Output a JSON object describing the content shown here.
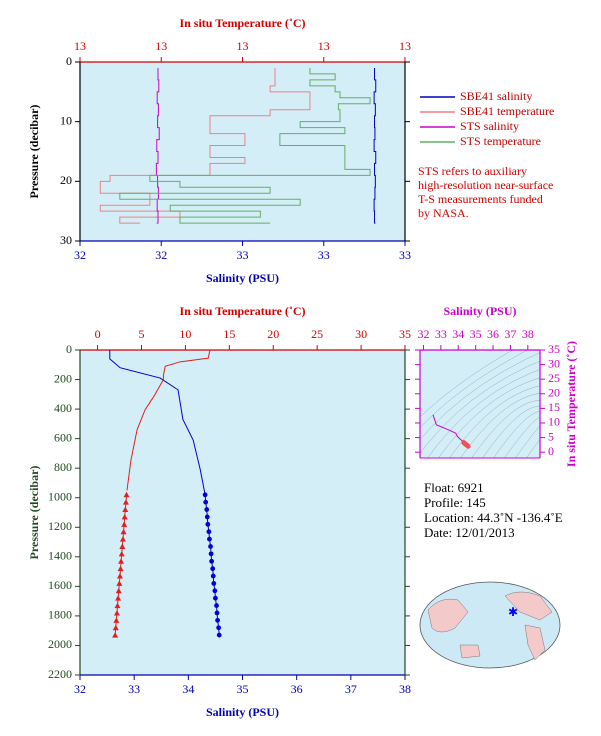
{
  "chart_data": [
    {
      "type": "line",
      "x_label": "Salinity (PSU)",
      "x2_label": "In situ Temperature (˚C)",
      "y_label": "Pressure (decibar)",
      "x_color": "#0000b0",
      "x2_color": "#d00000",
      "y_color": "#000000",
      "xlim": [
        32.2,
        33.0
      ],
      "xticks": [
        {
          "value": 32.2,
          "label": "32"
        },
        {
          "value": 32.4,
          "label": "32"
        },
        {
          "value": 32.6,
          "label": "33"
        },
        {
          "value": 32.8,
          "label": "33"
        },
        {
          "value": 33.0,
          "label": "33"
        }
      ],
      "x2lim": [
        12.8,
        13.2
      ],
      "x2ticks": [
        {
          "value": 12.8,
          "label": "13"
        },
        {
          "value": 12.9,
          "label": "13"
        },
        {
          "value": 13.0,
          "label": "13"
        },
        {
          "value": 13.1,
          "label": "13"
        },
        {
          "value": 13.2,
          "label": "13"
        }
      ],
      "ylim": [
        30,
        0
      ],
      "yticks": [
        0,
        10,
        20,
        30
      ],
      "legend": "right",
      "series": [
        {
          "name": "SBE41 salinity",
          "color": "#0000c0",
          "step": true,
          "x": [
            32.925,
            32.928,
            32.924,
            32.927,
            32.925,
            32.926,
            32.924,
            32.928,
            32.925,
            32.927,
            32.926,
            32.924,
            32.925,
            32.927
          ],
          "values": [
            1,
            3,
            5,
            7,
            9,
            11,
            13,
            15,
            17,
            19,
            21,
            23,
            25,
            27
          ]
        },
        {
          "name": "SBE41 temperature",
          "color": "#f08080",
          "axis": "x2",
          "step": true,
          "x": [
            13.04,
            13.034,
            13.083,
            13.034,
            12.96,
            13.003,
            12.96,
            13.003,
            12.96,
            12.837,
            12.825,
            12.886,
            12.825,
            12.923,
            12.849,
            12.874
          ],
          "values": [
            1,
            4,
            5,
            8,
            9,
            12,
            14,
            16,
            17,
            19,
            20,
            22,
            24,
            25,
            26,
            27
          ]
        },
        {
          "name": "STS salinity",
          "color": "#cc00cc",
          "step": true,
          "x": [
            32.392,
            32.394,
            32.39,
            32.393,
            32.391,
            32.395,
            32.389,
            32.392,
            32.388,
            32.391,
            32.393,
            32.39,
            32.392,
            32.389
          ],
          "values": [
            1,
            3,
            5,
            7,
            9,
            11,
            13,
            15,
            17,
            19,
            21,
            23,
            25,
            27
          ]
        },
        {
          "name": "STS temperature",
          "color": "#60b060",
          "axis": "x2",
          "step": true,
          "x": [
            13.083,
            13.114,
            13.083,
            13.114,
            13.12,
            13.157,
            13.118,
            13.12,
            13.071,
            13.126,
            13.046,
            13.126,
            13.126,
            13.157,
            12.886,
            12.923,
            13.034,
            12.849,
            13.071,
            12.911,
            13.022,
            12.923,
            13.034
          ],
          "values": [
            1,
            2,
            3,
            4,
            5,
            6,
            7,
            8,
            10,
            11,
            12,
            14,
            16,
            18,
            19,
            20,
            21,
            22,
            23,
            24,
            25,
            26,
            27
          ]
        }
      ],
      "note": [
        "STS refers to auxiliary",
        "high-resolution near-surface",
        "T-S measurements funded",
        "by NASA."
      ]
    },
    {
      "type": "line",
      "x_label": "Salinity (PSU)",
      "x2_label": "In situ Temperature (˚C)",
      "y_label": "Pressure (decibar)",
      "x_color": "#0000b0",
      "x2_color": "#d00000",
      "y_color": "#1f4a1f",
      "xlim": [
        32,
        38
      ],
      "xticks": [
        32,
        33,
        34,
        35,
        36,
        37,
        38
      ],
      "x2lim": [
        -2,
        35
      ],
      "x2ticks": [
        0,
        5,
        10,
        15,
        20,
        25,
        30,
        35
      ],
      "ylim": [
        2200,
        0
      ],
      "yticks": [
        0,
        200,
        400,
        600,
        800,
        1000,
        1200,
        1400,
        1600,
        1800,
        2000,
        2200
      ],
      "series": [
        {
          "color": "#0000d0",
          "x": [
            32.55,
            32.55,
            32.74,
            33.48,
            33.81,
            33.9,
            34.09,
            34.22,
            34.31
          ],
          "values": [
            0,
            60,
            120,
            190,
            270,
            470,
            610,
            810,
            980
          ]
        },
        {
          "color": "#0000d0",
          "marker": "circle",
          "x": [
            34.31,
            34.32,
            34.34,
            34.35,
            34.36,
            34.38,
            34.39,
            34.41,
            34.42,
            34.43,
            34.45,
            34.46,
            34.47,
            34.49,
            34.5,
            34.52,
            34.53,
            34.54,
            34.56,
            34.57
          ],
          "values": [
            980,
            1030,
            1080,
            1130,
            1180,
            1230,
            1280,
            1330,
            1380,
            1430,
            1480,
            1530,
            1580,
            1630,
            1680,
            1730,
            1780,
            1830,
            1880,
            1930
          ]
        },
        {
          "color": "#e02020",
          "axis": "x2",
          "x": [
            12.8,
            12.6,
            9.4,
            7.7,
            7.5,
            7.5,
            6.5,
            5.4,
            4.5,
            3.8,
            3.35
          ],
          "values": [
            0,
            55,
            80,
            110,
            170,
            200,
            305,
            406,
            540,
            745,
            950
          ]
        },
        {
          "color": "#e02020",
          "axis": "x2",
          "marker": "triangle",
          "x": [
            3.3,
            3.23,
            3.16,
            3.09,
            3.03,
            2.96,
            2.89,
            2.82,
            2.75,
            2.68,
            2.62,
            2.55,
            2.48,
            2.41,
            2.34,
            2.27,
            2.21,
            2.14,
            2.07,
            2.0
          ],
          "values": [
            980,
            1030,
            1080,
            1130,
            1180,
            1230,
            1280,
            1330,
            1380,
            1430,
            1480,
            1530,
            1580,
            1630,
            1680,
            1730,
            1780,
            1830,
            1880,
            1930
          ]
        }
      ]
    },
    {
      "type": "line",
      "x_label": "Salinity (PSU)",
      "y_label": "In situ Temperature (˚C)",
      "x_color": "#cc00cc",
      "y_color": "#cc00cc",
      "x_side": "top",
      "y_side": "right",
      "xlim": [
        31.8,
        38.7
      ],
      "xticks": [
        32,
        33,
        34,
        35,
        36,
        37,
        38
      ],
      "ylim": [
        -2,
        35
      ],
      "yticks": [
        0,
        5,
        10,
        15,
        20,
        25,
        30,
        35
      ],
      "series": [
        {
          "color": "#cc00cc",
          "x": [
            32.55,
            32.74,
            33.5,
            33.85,
            33.95,
            34.1,
            34.25,
            34.3
          ],
          "values": [
            12.8,
            9.4,
            7.5,
            6.5,
            5.4,
            4.5,
            3.8,
            3.35
          ]
        },
        {
          "color": "#f05050",
          "marker": "circle",
          "x": [
            34.31,
            34.34,
            34.36,
            34.39,
            34.42,
            34.45,
            34.47,
            34.5,
            34.53,
            34.57
          ],
          "values": [
            3.3,
            3.16,
            3.03,
            2.89,
            2.75,
            2.62,
            2.48,
            2.34,
            2.21,
            2.0
          ]
        }
      ]
    }
  ],
  "float_info": [
    "Float:  6921",
    "Profile:  145",
    "Location:  44.3˚N  -136.4˚E",
    "Date:  12/01/2013"
  ]
}
